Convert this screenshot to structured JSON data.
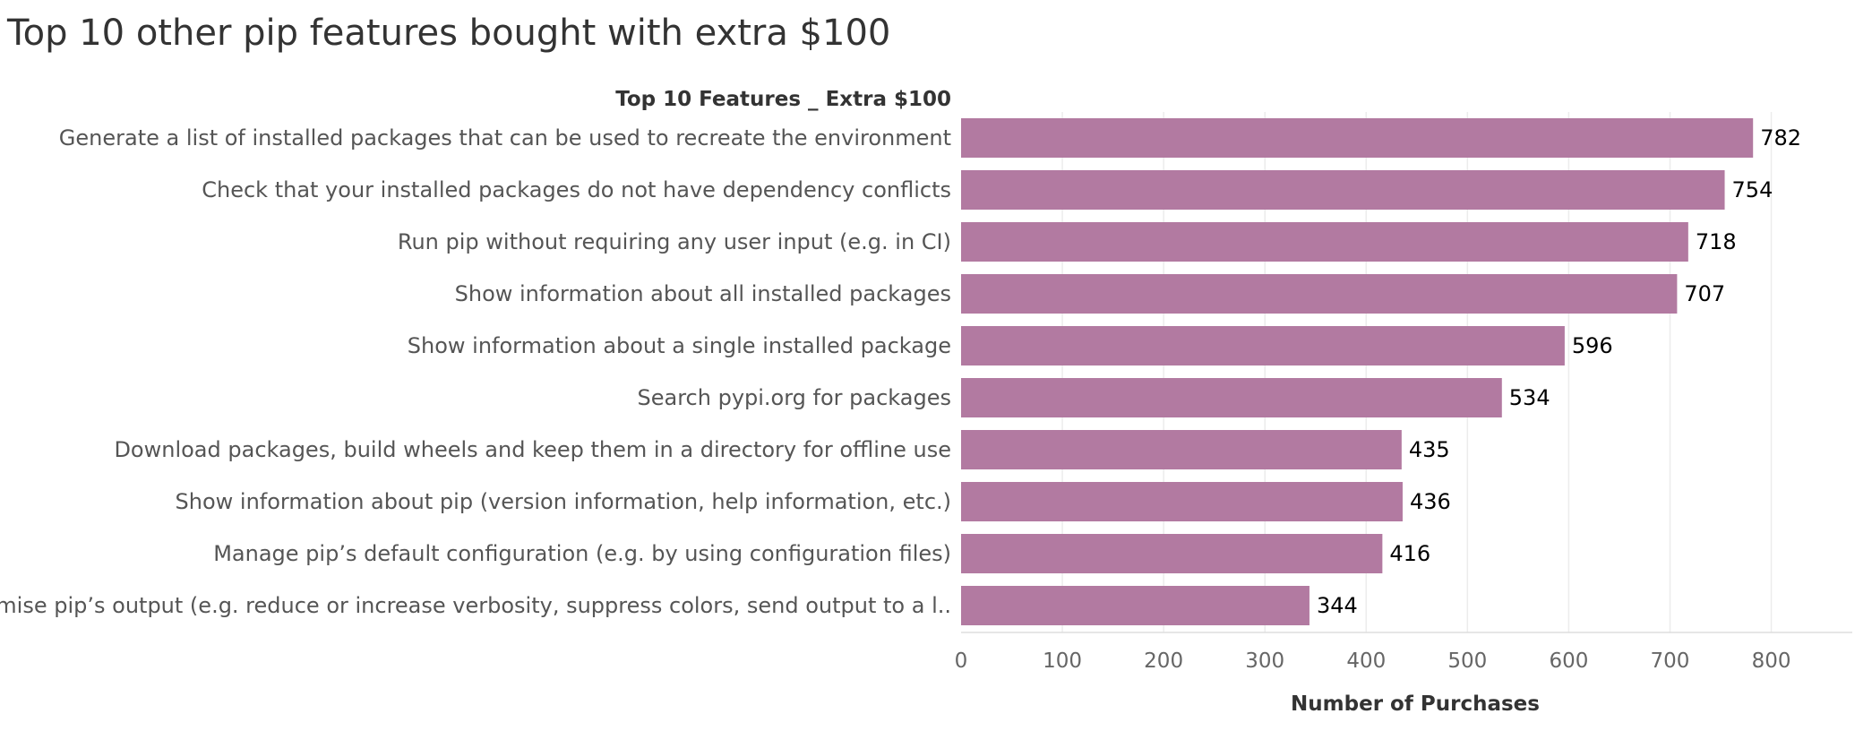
{
  "page_title": "Top 10 other pip features bought with extra $100",
  "bar_color": "#b27aa1",
  "chart_data": {
    "type": "bar",
    "orientation": "horizontal",
    "row_header": "Top 10 Features _ Extra $100",
    "xlabel": "Number of Purchases",
    "xlim": [
      0,
      880
    ],
    "xticks": [
      0,
      100,
      200,
      300,
      400,
      500,
      600,
      700,
      800
    ],
    "xtick_labels": [
      "0",
      "100",
      "200",
      "300",
      "400",
      "500",
      "600",
      "700",
      "800"
    ],
    "grid": true,
    "categories": [
      "Generate a list of installed packages that can be used to recreate the environment",
      "Check that your installed packages do not have dependency conflicts",
      "Run pip without requiring any user input (e.g. in CI)",
      "Show information about all installed packages",
      "Show information about a single installed package",
      "Search pypi.org for packages",
      "Download packages, build wheels and keep them in a directory for offline use",
      "Show information about pip (version information, help information, etc.)",
      "Manage pip’s default configuration (e.g. by using configuration files)",
      "Customise pip’s output (e.g. reduce or increase verbosity, suppress colors, send output to a l.."
    ],
    "values": [
      782,
      754,
      718,
      707,
      596,
      534,
      435,
      436,
      416,
      344
    ],
    "value_labels": [
      "782",
      "754",
      "718",
      "707",
      "596",
      "534",
      "435",
      "436",
      "416",
      "344"
    ]
  }
}
